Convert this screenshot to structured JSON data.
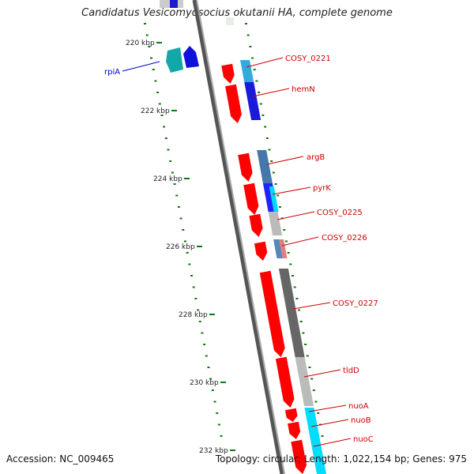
{
  "title": "Candidatus Vesicomyosocius okutanii HA, complete genome",
  "accession_text": "Accession: NC_009465",
  "summary_text": "Topology: circular; Length: 1,022,154 bp; Genes: 975",
  "colors": {
    "forward_cds": "#ff0000",
    "backbone": "#888888",
    "kbp_ticks": "#117711",
    "gene_label": "#cc0000",
    "reverse_label": "#0000cc"
  },
  "scale": {
    "unit": "kbp",
    "labels": [
      {
        "pos_kbp": 220,
        "text": "220 kbp"
      },
      {
        "pos_kbp": 222,
        "text": "222 kbp"
      },
      {
        "pos_kbp": 224,
        "text": "224 kbp"
      },
      {
        "pos_kbp": 226,
        "text": "226 kbp"
      },
      {
        "pos_kbp": 228,
        "text": "228 kbp"
      },
      {
        "pos_kbp": 230,
        "text": "230 kbp"
      },
      {
        "pos_kbp": 232,
        "text": "232 kbp"
      }
    ]
  },
  "genes": [
    {
      "label": "rpiA",
      "strand": "reverse"
    },
    {
      "label": "COSY_0221",
      "strand": "forward"
    },
    {
      "label": "hemN",
      "strand": "forward"
    },
    {
      "label": "argB",
      "strand": "forward"
    },
    {
      "label": "pyrK",
      "strand": "forward"
    },
    {
      "label": "COSY_0225",
      "strand": "forward"
    },
    {
      "label": "COSY_0226",
      "strand": "forward"
    },
    {
      "label": "COSY_0227",
      "strand": "forward"
    },
    {
      "label": "tldD",
      "strand": "forward"
    },
    {
      "label": "nuoA",
      "strand": "forward"
    },
    {
      "label": "nuoB",
      "strand": "forward"
    },
    {
      "label": "nuoC",
      "strand": "forward"
    }
  ]
}
